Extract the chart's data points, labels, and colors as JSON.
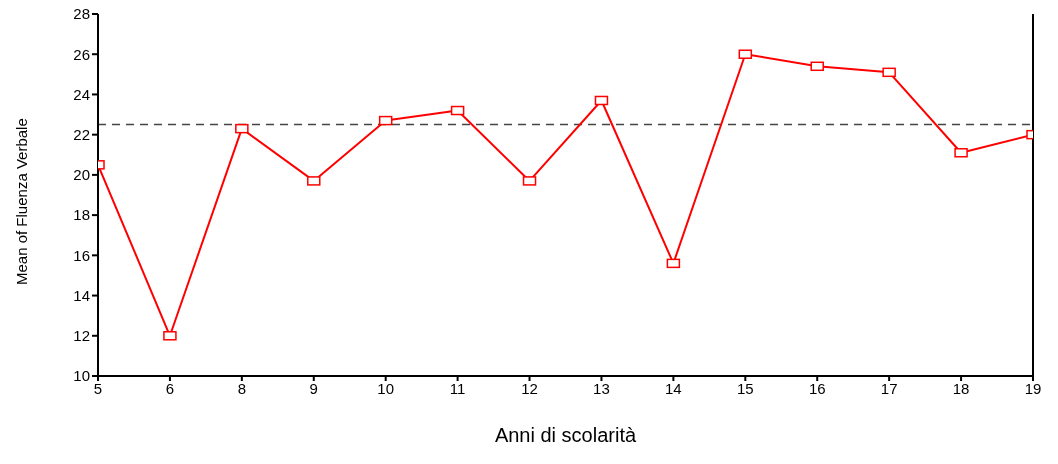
{
  "chart_data": {
    "type": "line",
    "xlabel": "Anni di scolarità",
    "ylabel": "Mean of Fluenza Verbale",
    "categories": [
      "5",
      "6",
      "8",
      "9",
      "10",
      "11",
      "12",
      "13",
      "14",
      "15",
      "16",
      "17",
      "18",
      "19"
    ],
    "series": [
      {
        "color": "#ff0000",
        "values": [
          20.5,
          12.0,
          22.3,
          19.7,
          22.7,
          23.2,
          19.7,
          23.7,
          15.6,
          26.0,
          25.4,
          25.1,
          21.1,
          22.0
        ]
      }
    ],
    "ylim": [
      10,
      28
    ],
    "yticks": [
      10,
      12,
      14,
      16,
      18,
      20,
      22,
      24,
      26,
      28
    ],
    "ref_lines": [
      {
        "axis": "y",
        "value": 22.5,
        "color": "#444444",
        "line_style": "dashed"
      }
    ],
    "grid": false,
    "legend": false,
    "marker": "square",
    "line_style": "solid"
  }
}
